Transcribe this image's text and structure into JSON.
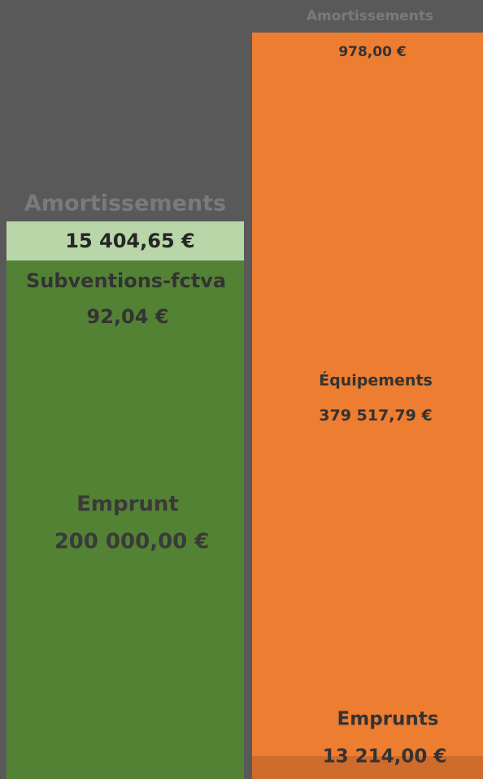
{
  "left_column": {
    "items": [
      {
        "label": "Amortissements",
        "amount": "15 404,65 €"
      },
      {
        "label": "Subventions-fctva",
        "amount": "92,04 €"
      },
      {
        "label": "Emprunt",
        "amount": "200 000,00 €"
      }
    ]
  },
  "right_column": {
    "items": [
      {
        "label": "Amortissements",
        "amount": "978,00 €"
      },
      {
        "label": "Équipements",
        "amount": "379 517,79 €"
      },
      {
        "label": "Emprunts",
        "amount": "13 214,00 €"
      }
    ]
  }
}
